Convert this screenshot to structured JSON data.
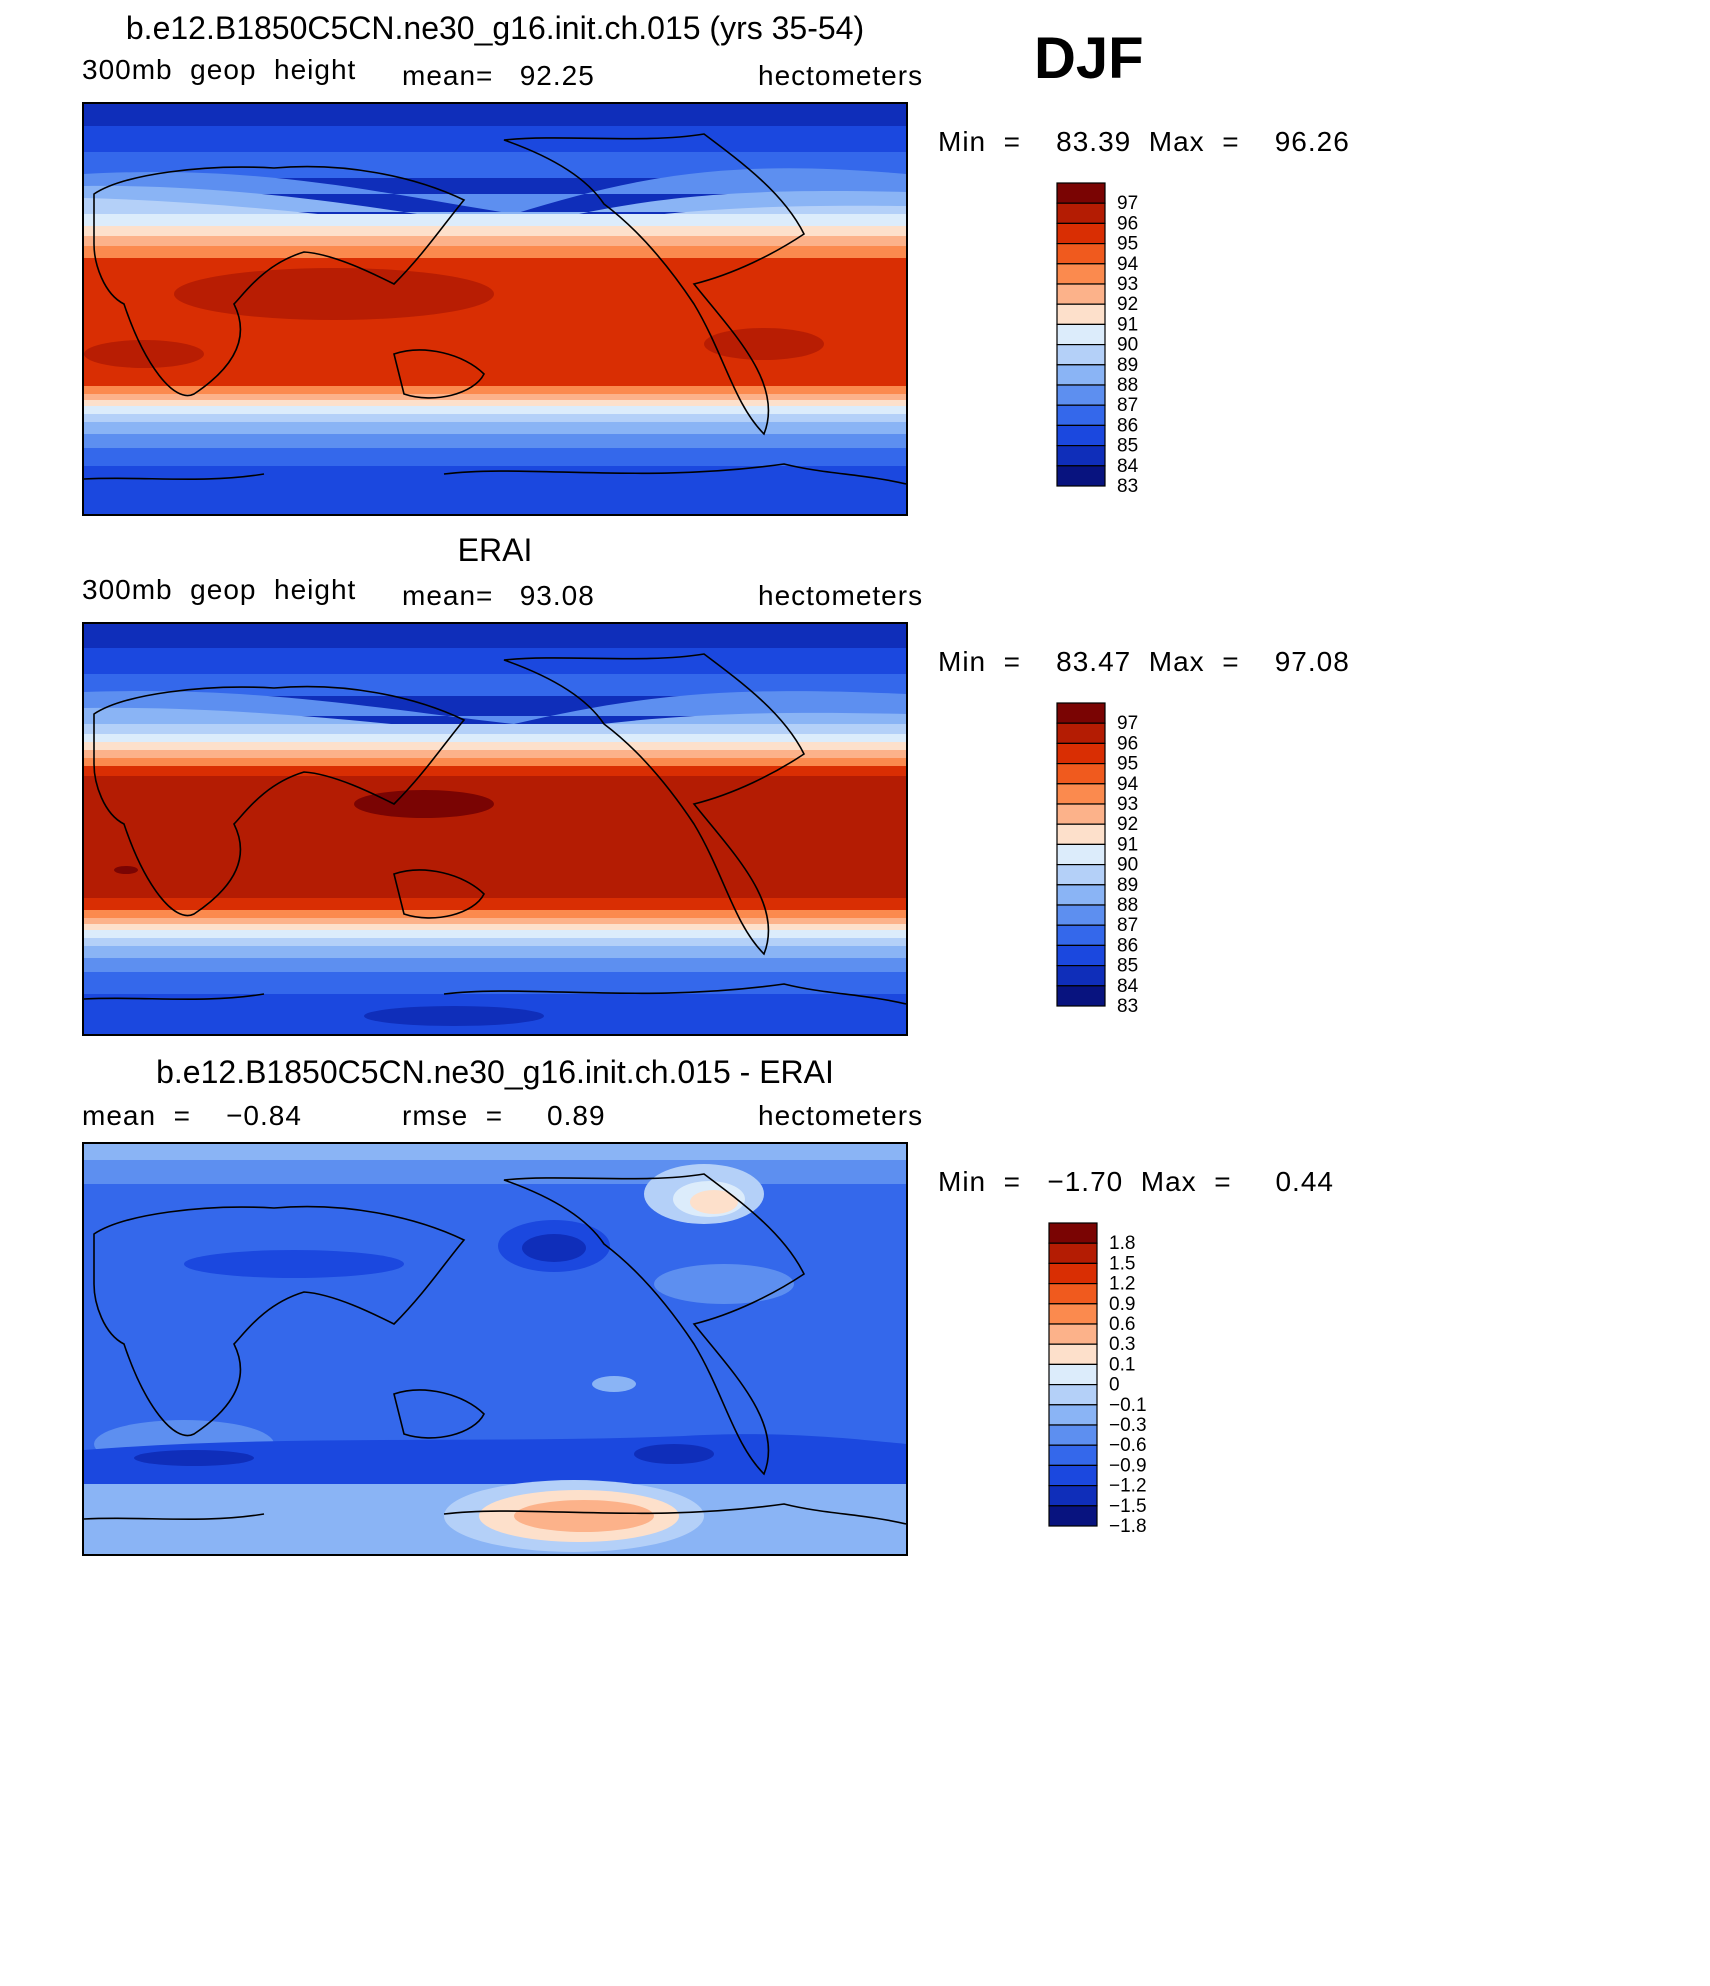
{
  "season": "DJF",
  "panels": [
    {
      "title": "b.e12.B1850C5CN.ne30_g16.init.ch.015 (yrs 35-54)",
      "left": "300mb  geop  height",
      "center": "mean=   92.25",
      "right": "hectometers",
      "minmax": "Min  =    83.39  Max  =    96.26"
    },
    {
      "title": "ERAI",
      "left": "300mb  geop  height",
      "center": "mean=   93.08",
      "right": "hectometers",
      "minmax": "Min  =    83.47  Max  =    97.08"
    },
    {
      "title": "b.e12.B1850C5CN.ne30_g16.init.ch.015 - ERAI",
      "left": "mean  =    −0.84",
      "center": "rmse  =     0.89",
      "right": "hectometers",
      "minmax": "Min  =   −1.70  Max  =     0.44"
    }
  ],
  "chart_data": [
    {
      "type": "heatmap",
      "title": "b.e12.B1850C5CN.ne30_g16.init.ch.015 (yrs 35-54)",
      "variable": "300mb geop height",
      "units": "hectometers",
      "mean": 92.25,
      "min": 83.39,
      "max": 96.26,
      "levels": [
        97,
        96,
        95,
        94,
        93,
        92,
        91,
        90,
        89,
        88,
        87,
        86,
        85,
        84,
        83
      ],
      "level_labels": [
        "97",
        "96",
        "95",
        "94",
        "93",
        "92",
        "91",
        "90",
        "89",
        "88",
        "87",
        "86",
        "85",
        "84",
        "83"
      ]
    },
    {
      "type": "heatmap",
      "title": "ERAI",
      "variable": "300mb geop height",
      "units": "hectometers",
      "mean": 93.08,
      "min": 83.47,
      "max": 97.08,
      "levels": [
        97,
        96,
        95,
        94,
        93,
        92,
        91,
        90,
        89,
        88,
        87,
        86,
        85,
        84,
        83
      ],
      "level_labels": [
        "97",
        "96",
        "95",
        "94",
        "93",
        "92",
        "91",
        "90",
        "89",
        "88",
        "87",
        "86",
        "85",
        "84",
        "83"
      ]
    },
    {
      "type": "heatmap",
      "title": "b.e12.B1850C5CN.ne30_g16.init.ch.015 - ERAI",
      "units": "hectometers",
      "mean": -0.84,
      "rmse": 0.89,
      "min": -1.7,
      "max": 0.44,
      "levels": [
        1.8,
        1.5,
        1.2,
        0.9,
        0.6,
        0.3,
        0.1,
        0,
        -0.1,
        -0.3,
        -0.6,
        -0.9,
        -1.2,
        -1.5,
        -1.8
      ],
      "level_labels": [
        "1.8",
        "1.5",
        "1.2",
        "0.9",
        "0.6",
        "0.3",
        "0.1",
        "0",
        "−0.1",
        "−0.3",
        "−0.6",
        "−0.9",
        "−1.2",
        "−1.5",
        "−1.8"
      ]
    }
  ],
  "colors": [
    "#7a0403",
    "#b41c03",
    "#d92e03",
    "#f05a1e",
    "#fb8a4e",
    "#fcb28a",
    "#fde0cb",
    "#dcecfb",
    "#b4d0f8",
    "#8ab4f5",
    "#5d8ff0",
    "#3468eb",
    "#1b48df",
    "#0f2eba",
    "#08137f"
  ]
}
